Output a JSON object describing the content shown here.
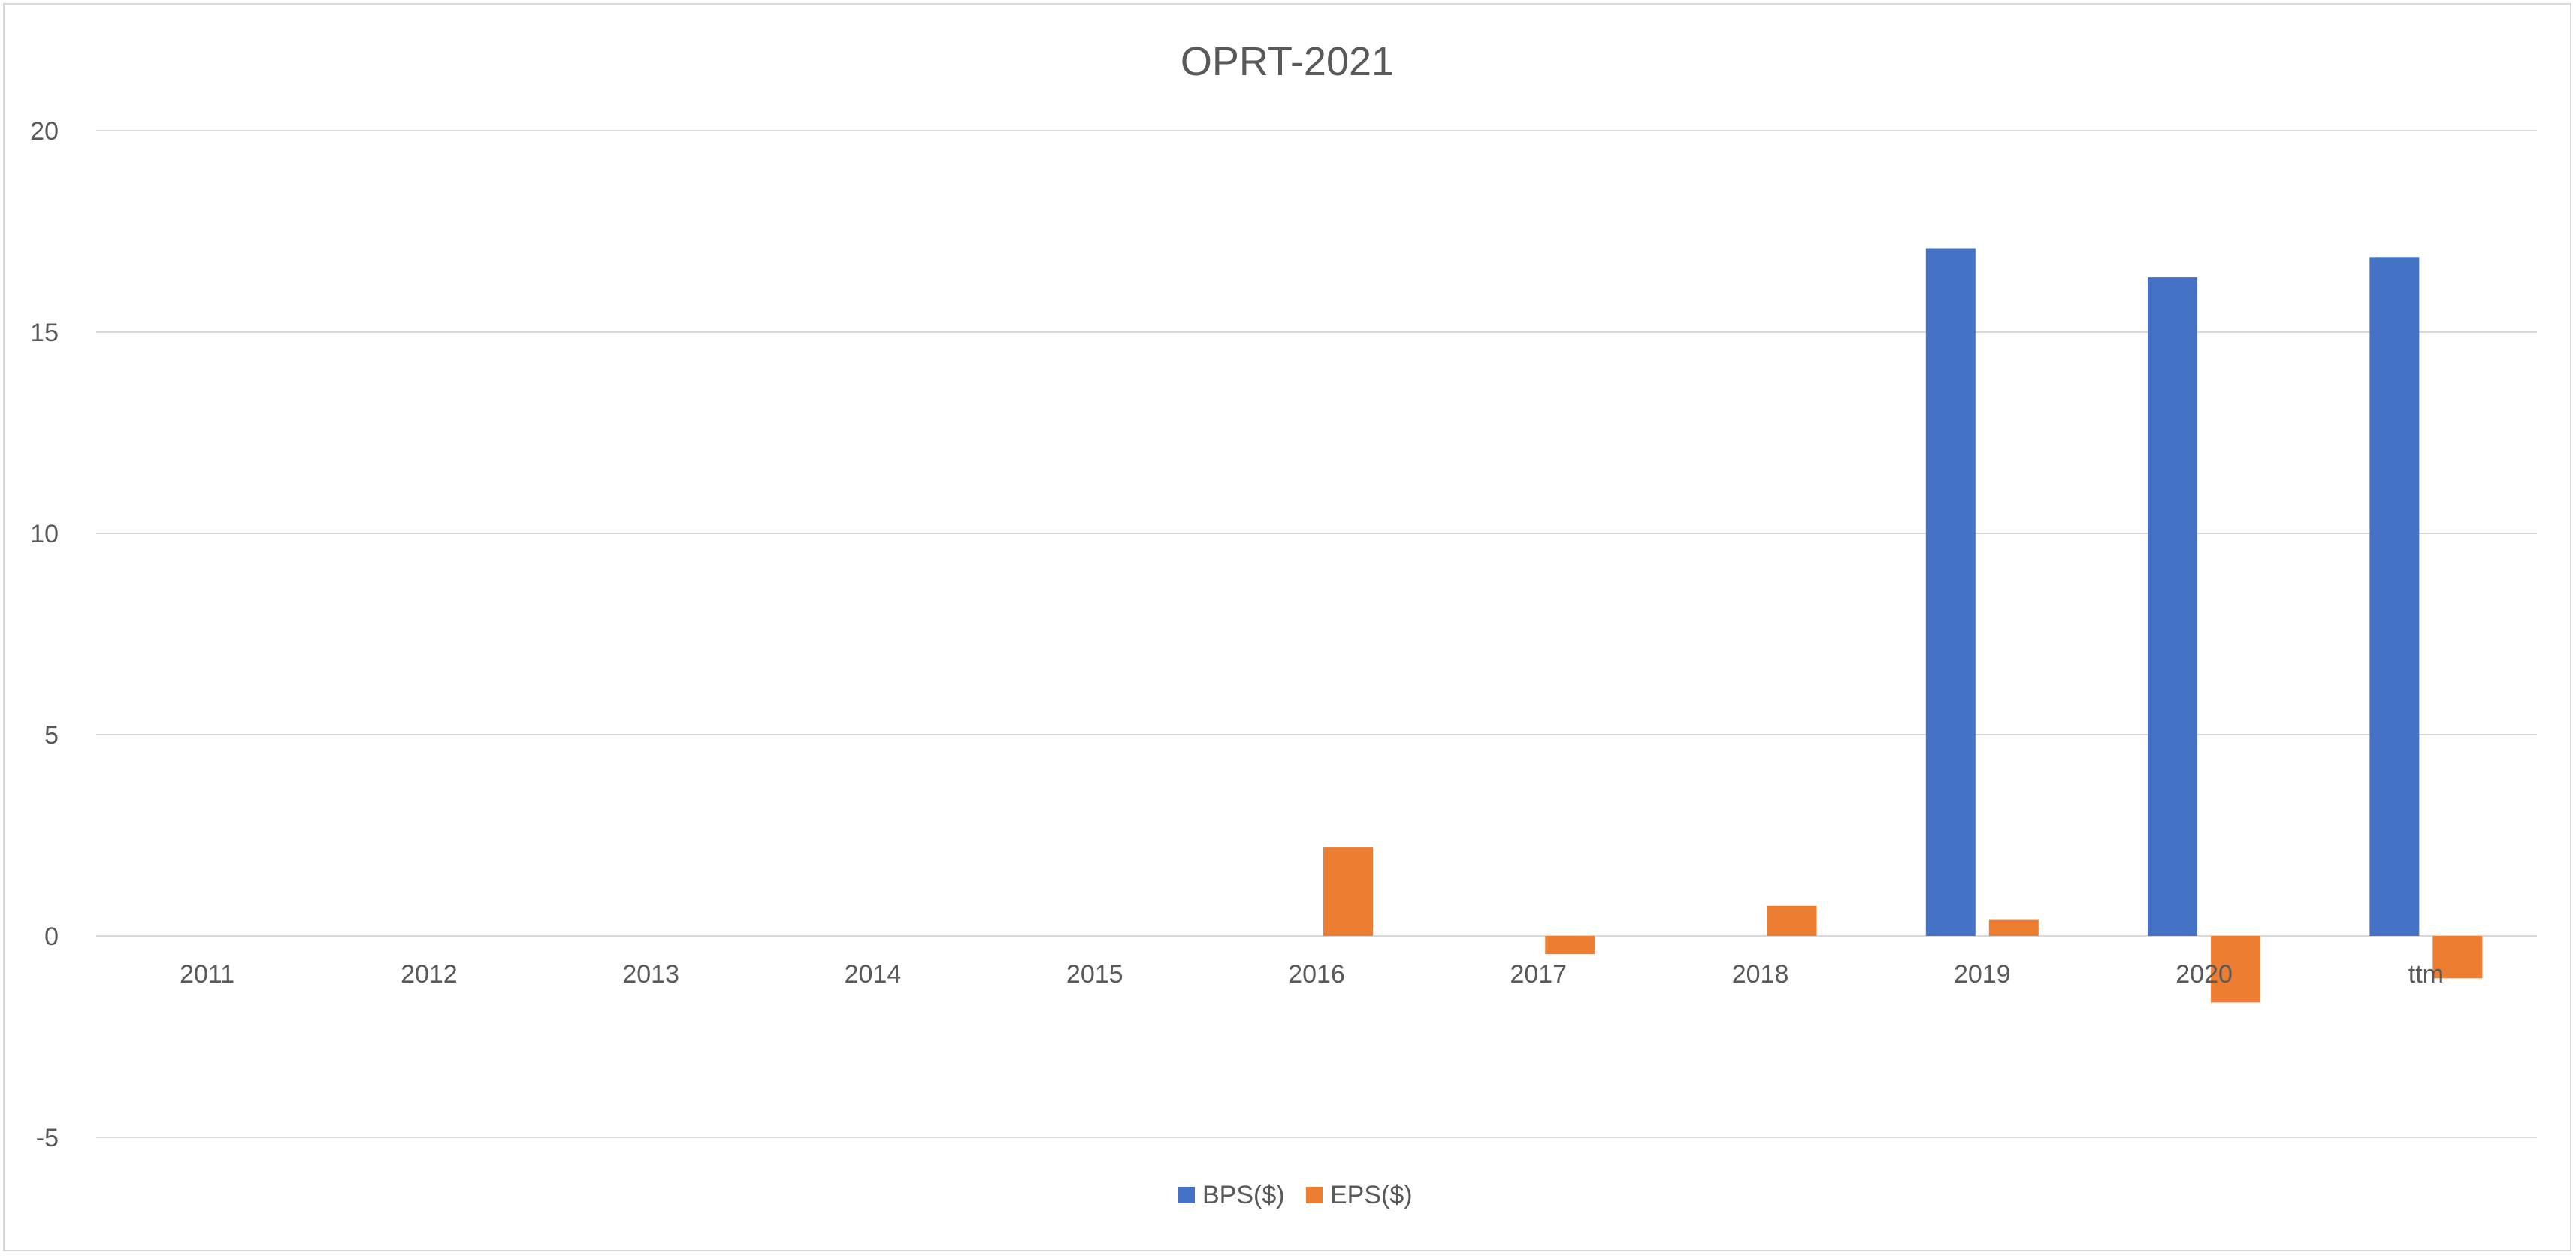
{
  "chart_data": {
    "type": "bar",
    "title": "OPRT-2021",
    "categories": [
      "2011",
      "2012",
      "2013",
      "2014",
      "2015",
      "2016",
      "2017",
      "2018",
      "2019",
      "2020",
      "ttm"
    ],
    "series": [
      {
        "name": "BPS($)",
        "color": "#4472C4",
        "values": [
          null,
          null,
          null,
          null,
          null,
          null,
          null,
          null,
          17.08,
          16.36,
          16.86
        ]
      },
      {
        "name": "EPS($)",
        "color": "#ED7D31",
        "values": [
          null,
          null,
          null,
          null,
          null,
          2.2,
          -0.45,
          0.75,
          0.4,
          -1.65,
          -1.05
        ]
      }
    ],
    "ylim": [
      -5,
      20
    ],
    "yticks": [
      20,
      15,
      10,
      5,
      0,
      -5
    ],
    "grid": true,
    "legend_position": "bottom"
  }
}
